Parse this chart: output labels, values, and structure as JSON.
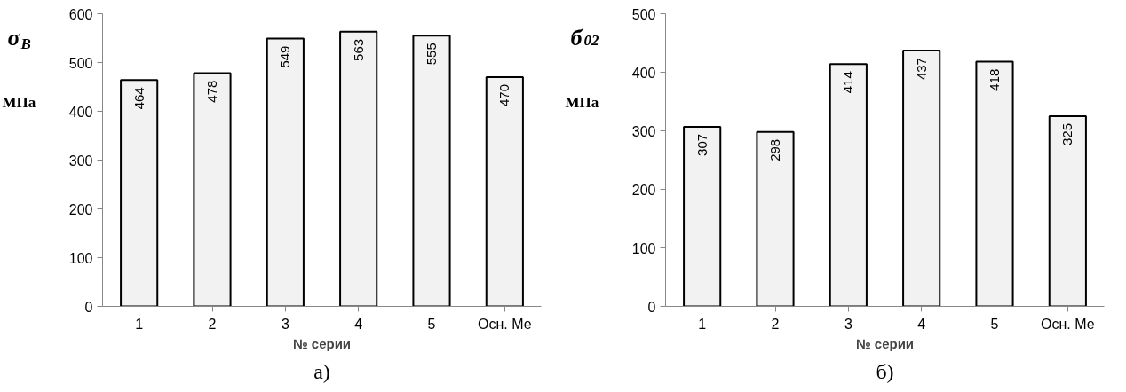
{
  "chart_data": [
    {
      "type": "bar",
      "ylabel": "σ$_{B}$",
      "xlabel": "№ серии",
      "categories": [
        "1",
        "2",
        "3",
        "4",
        "5",
        "Осн. Ме"
      ],
      "values": [
        464,
        478,
        549,
        563,
        555,
        470
      ],
      "color": "#f2f2f2",
      "ylim": [
        0,
        600
      ],
      "yticks": [
        0,
        100,
        200,
        300,
        400,
        500,
        600
      ],
      "data_labels": true,
      "grid": false,
      "annotations": [
        "МПа",
        "а)"
      ]
    },
    {
      "type": "bar",
      "ylabel": "б$_{02}$",
      "xlabel": "№ серии",
      "categories": [
        "1",
        "2",
        "3",
        "4",
        "5",
        "Осн. Ме"
      ],
      "values": [
        307,
        298,
        414,
        437,
        418,
        325
      ],
      "color": "#f2f2f2",
      "ylim": [
        0,
        500
      ],
      "yticks": [
        0,
        100,
        200,
        300,
        400,
        500
      ],
      "data_labels": true,
      "grid": false,
      "annotations": [
        "МПа",
        "б)"
      ]
    }
  ]
}
